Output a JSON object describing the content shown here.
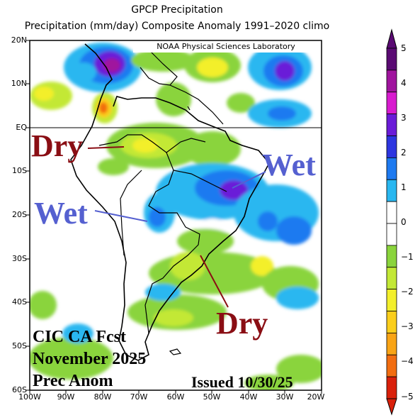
{
  "header": {
    "title": "GPCP Precipitation",
    "subtitle": "Precipitation (mm/day) Composite Anomaly 1991–2020 climo"
  },
  "map": {
    "credit": "NOAA Physical Sciences Laboratory",
    "lat_labels": [
      "20N",
      "10N",
      "EQ",
      "10S",
      "20S",
      "30S",
      "40S",
      "50S",
      "60S"
    ],
    "lon_labels": [
      "100W",
      "90W",
      "80W",
      "70W",
      "60W",
      "50W",
      "40W",
      "30W",
      "20W"
    ],
    "annotations": {
      "dry_north": "Dry",
      "wet_east": "Wet",
      "wet_west": "Wet",
      "dry_south": "Dry"
    },
    "stamp": {
      "line1": "CIC CA Fcst",
      "line2": "November 2025",
      "line3": "Prec Anom",
      "issued": "Issued 10/30/25"
    }
  },
  "colorbar": {
    "labels": [
      "5",
      "4",
      "3",
      "2",
      "1",
      "0",
      "−1",
      "−2",
      "−3",
      "−4",
      "−5"
    ],
    "colors": [
      "#5a0a73",
      "#a0149e",
      "#d81bcf",
      "#6a1bd8",
      "#2d36e0",
      "#1e7af0",
      "#29b7f0",
      "#ffffff",
      "#ffffff",
      "#8ad43c",
      "#c3e836",
      "#f3ef2b",
      "#fbce1b",
      "#f9a415",
      "#f26d10",
      "#d9200b"
    ]
  }
}
